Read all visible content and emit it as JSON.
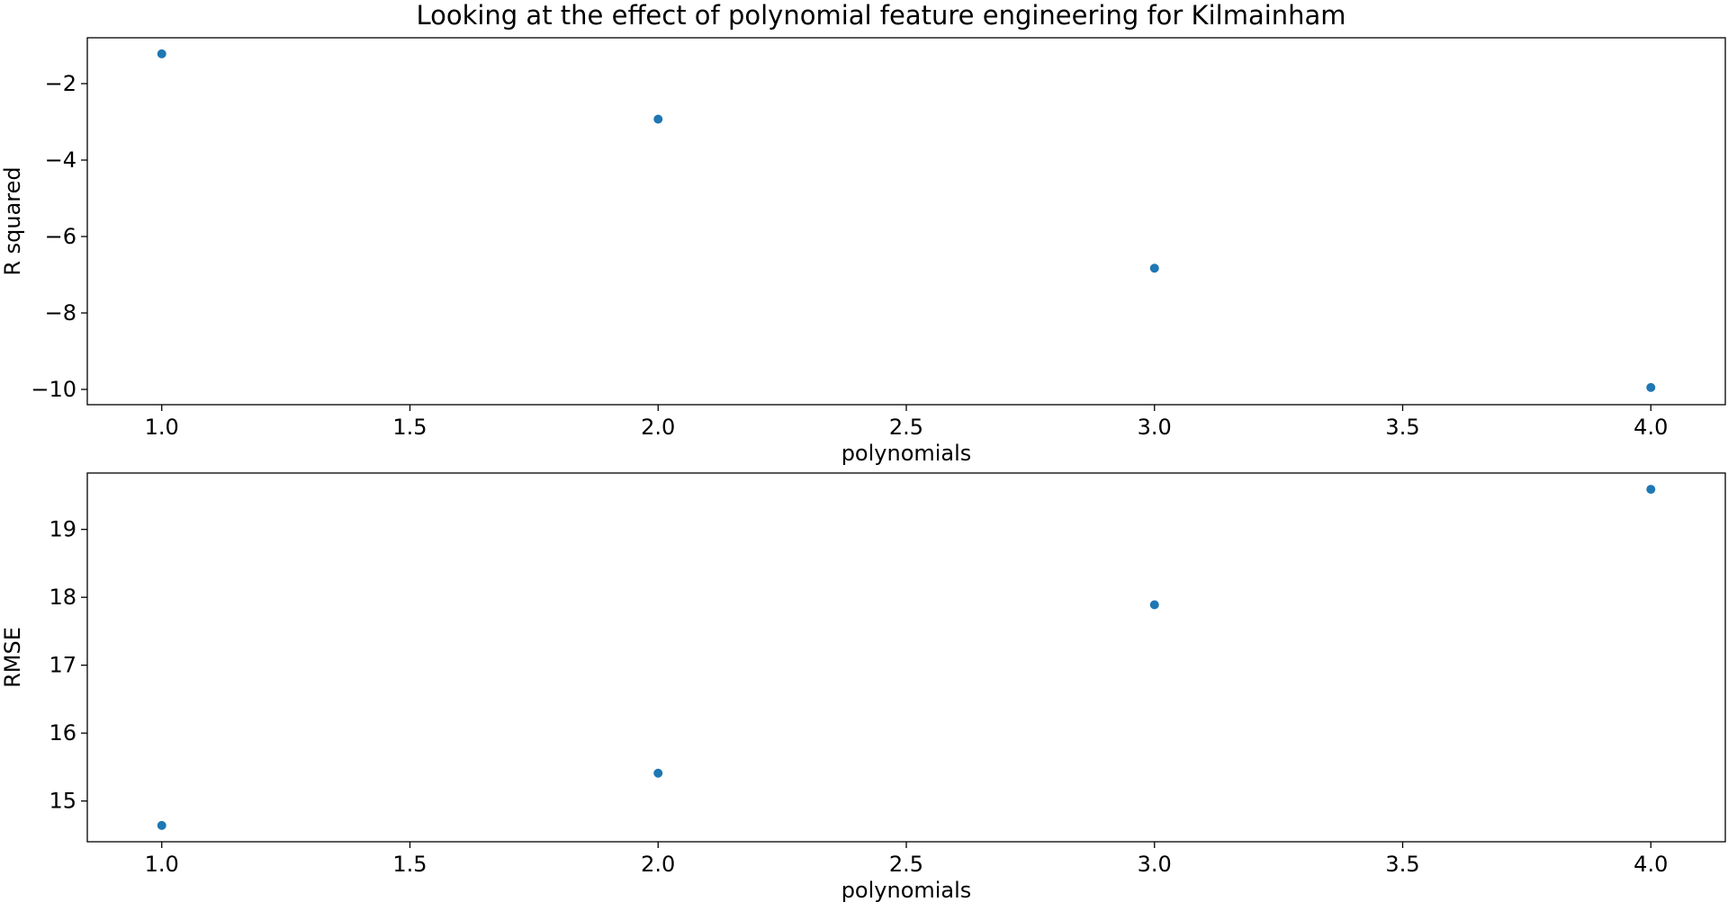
{
  "figure": {
    "title": "Looking at the effect of polynomial feature engineering for Kilmainham"
  },
  "chart_data": [
    {
      "type": "scatter",
      "title": "",
      "xlabel": "polynomials",
      "ylabel": "R squared",
      "x": [
        1.0,
        2.0,
        3.0,
        4.0
      ],
      "y": [
        -1.22,
        -2.93,
        -6.83,
        -9.95
      ],
      "xlim": [
        0.85,
        4.15
      ],
      "ylim": [
        -10.4,
        -0.8
      ],
      "xticks": [
        1.0,
        1.5,
        2.0,
        2.5,
        3.0,
        3.5,
        4.0
      ],
      "xtick_labels": [
        "1.0",
        "1.5",
        "2.0",
        "2.5",
        "3.0",
        "3.5",
        "4.0"
      ],
      "yticks": [
        -2,
        -4,
        -6,
        -8,
        -10
      ],
      "ytick_labels": [
        "−2",
        "−4",
        "−6",
        "−8",
        "−10"
      ],
      "marker_color": "#1f77b4",
      "grid": false,
      "legend": "none"
    },
    {
      "type": "scatter",
      "title": "",
      "xlabel": "polynomials",
      "ylabel": "RMSE",
      "x": [
        1.0,
        2.0,
        3.0,
        4.0
      ],
      "y": [
        14.64,
        15.41,
        17.89,
        19.59
      ],
      "xlim": [
        0.85,
        4.15
      ],
      "ylim": [
        14.4,
        19.83
      ],
      "xticks": [
        1.0,
        1.5,
        2.0,
        2.5,
        3.0,
        3.5,
        4.0
      ],
      "xtick_labels": [
        "1.0",
        "1.5",
        "2.0",
        "2.5",
        "3.0",
        "3.5",
        "4.0"
      ],
      "yticks": [
        15,
        16,
        17,
        18,
        19
      ],
      "ytick_labels": [
        "15",
        "16",
        "17",
        "18",
        "19"
      ],
      "marker_color": "#1f77b4",
      "grid": false,
      "legend": "none"
    }
  ]
}
